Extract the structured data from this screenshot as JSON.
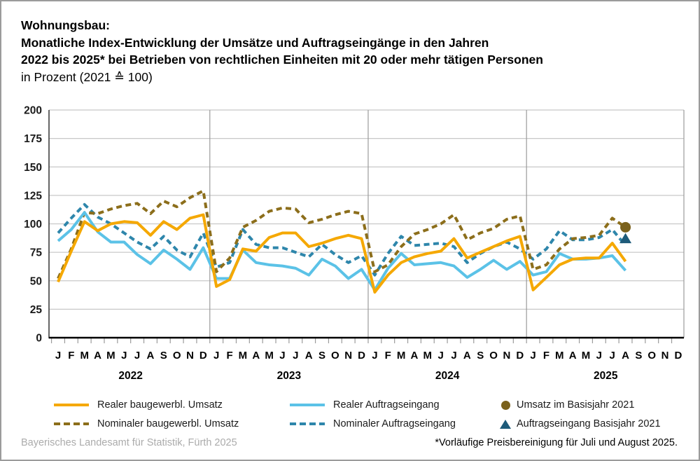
{
  "title": {
    "line1": "Wohnungsbau:",
    "line2": "Monatliche Index-Entwicklung der Umsätze und Auftragseingänge in den Jahren",
    "line3": "2022 bis 2025* bei Betrieben von rechtlichen Einheiten mit 20 oder mehr tätigen Personen",
    "line4": "in Prozent (2021 ≙ 100)"
  },
  "chart_data": {
    "type": "line",
    "title": "Wohnungsbau: Monatliche Index-Entwicklung der Umsätze und Auftragseingänge",
    "ylabel": "Prozent (2021 = 100)",
    "ylim": [
      0,
      200
    ],
    "yticks": [
      0,
      25,
      50,
      75,
      100,
      125,
      150,
      175,
      200
    ],
    "grid": true,
    "month_letters": [
      "J",
      "F",
      "M",
      "A",
      "M",
      "J",
      "J",
      "A",
      "S",
      "O",
      "N",
      "D"
    ],
    "years": [
      "2022",
      "2023",
      "2024",
      "2025"
    ],
    "x_range": "Januar 2022 bis August 2025",
    "series": [
      {
        "name": "Realer baugewerbl. Umsatz",
        "color": "#F5A800",
        "style": "solid",
        "values": [
          49,
          76,
          102,
          94,
          100,
          102,
          101,
          90,
          102,
          95,
          105,
          108,
          45,
          51,
          78,
          76,
          88,
          92,
          92,
          80,
          83,
          87,
          90,
          87,
          40,
          55,
          66,
          71,
          74,
          76,
          87,
          70,
          75,
          80,
          85,
          89,
          42,
          53,
          64,
          69,
          70,
          70,
          83,
          67
        ]
      },
      {
        "name": "Nominaler baugewerbl. Umsatz",
        "color": "#8C6E1B",
        "style": "dashed",
        "values": [
          52,
          78,
          110,
          109,
          113,
          116,
          118,
          109,
          120,
          115,
          123,
          129,
          58,
          70,
          97,
          103,
          111,
          114,
          113,
          101,
          104,
          108,
          111,
          109,
          58,
          64,
          80,
          91,
          95,
          100,
          108,
          86,
          92,
          96,
          104,
          107,
          60,
          64,
          78,
          87,
          88,
          90,
          105,
          97
        ]
      },
      {
        "name": "Realer Auftragseingang",
        "color": "#5BC2E7",
        "style": "solid",
        "values": [
          85,
          95,
          110,
          93,
          84,
          84,
          73,
          65,
          77,
          69,
          60,
          79,
          52,
          52,
          77,
          66,
          64,
          63,
          61,
          55,
          69,
          63,
          52,
          60,
          42,
          61,
          74,
          64,
          65,
          66,
          63,
          53,
          60,
          68,
          60,
          67,
          55,
          58,
          74,
          69,
          69,
          70,
          72,
          59
        ]
      },
      {
        "name": "Nominaler Auftragseingang",
        "color": "#2E86AB",
        "style": "dashed",
        "values": [
          92,
          105,
          117,
          106,
          100,
          92,
          84,
          78,
          89,
          77,
          71,
          92,
          62,
          66,
          95,
          82,
          79,
          79,
          75,
          71,
          82,
          73,
          66,
          72,
          55,
          74,
          89,
          81,
          82,
          83,
          80,
          66,
          74,
          80,
          84,
          78,
          69,
          78,
          94,
          86,
          86,
          88,
          95,
          81
        ]
      }
    ],
    "markers": [
      {
        "name": "Umsatz im Basisjahr 2021",
        "shape": "circle",
        "color": "#7A611C",
        "month_index": 43,
        "value": 97
      },
      {
        "name": "Auftragseingang Basisjahr 2021",
        "shape": "triangle",
        "color": "#1E5B7A",
        "month_index": 43,
        "value": 87
      }
    ]
  },
  "legend": {
    "items": [
      {
        "label": "Realer baugewerbl. Umsatz",
        "color": "#F5A800",
        "swatch": "line"
      },
      {
        "label": "Nominaler baugewerbl. Umsatz",
        "color": "#8C6E1B",
        "swatch": "dash"
      },
      {
        "label": "Realer Auftragseingang",
        "color": "#5BC2E7",
        "swatch": "line"
      },
      {
        "label": "Nominaler Auftragseingang",
        "color": "#2E86AB",
        "swatch": "dash"
      },
      {
        "label": "Umsatz im Basisjahr 2021",
        "color": "#7A611C",
        "swatch": "circle"
      },
      {
        "label": "Auftragseingang Basisjahr 2021",
        "color": "#1E5B7A",
        "swatch": "triangle"
      }
    ]
  },
  "footer": {
    "source": "Bayerisches Landesamt für Statistik, Fürth 2025",
    "note": "*Vorläufige Preisbereinigung für Juli und August 2025."
  }
}
